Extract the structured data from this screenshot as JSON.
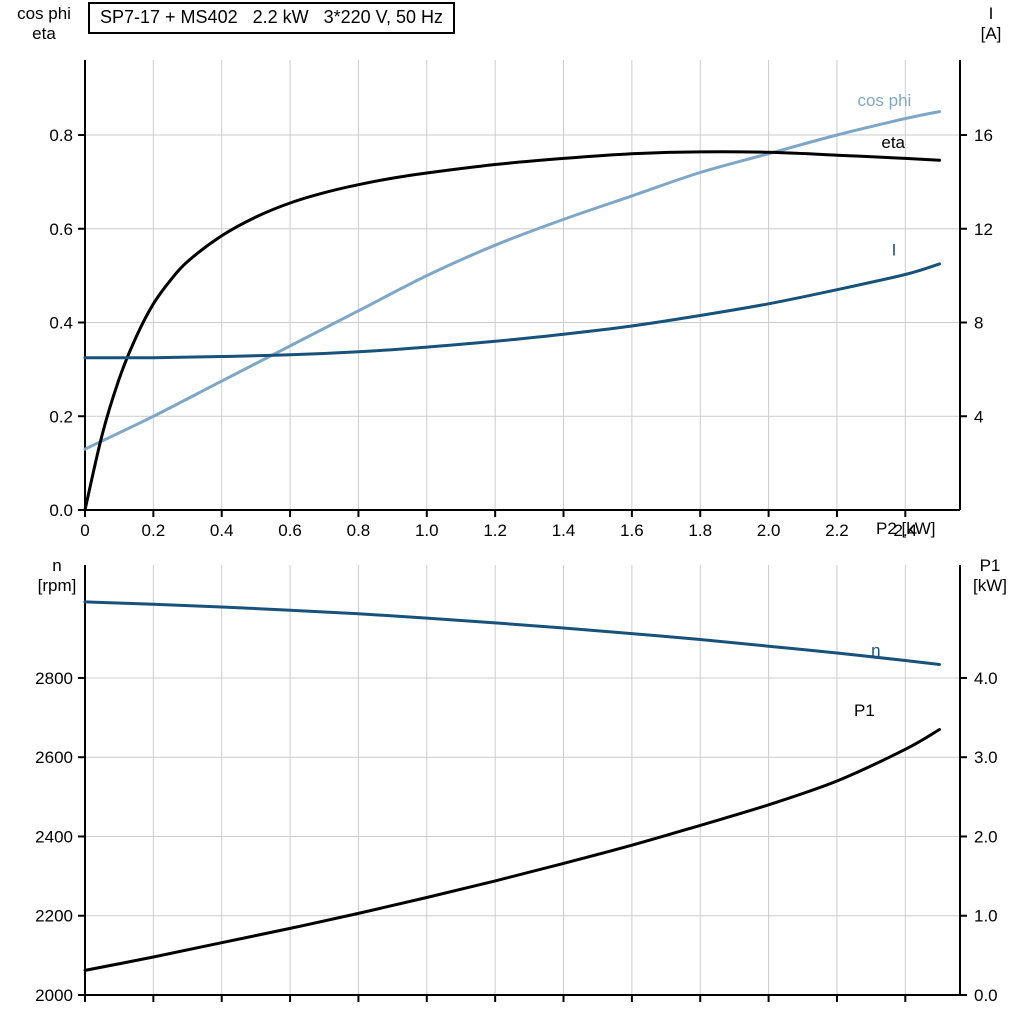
{
  "title_box": "SP7-17 + MS402   2.2 kW   3*220 V, 50 Hz",
  "labels": {
    "top_left_line1": "cos phi",
    "top_left_line2": "eta",
    "top_right_line1": "I",
    "top_right_line2": "[A]",
    "x_axis_label": "P2 [kW]",
    "bottom_left_line1": "n",
    "bottom_left_line2": "[rpm]",
    "bottom_right_line1": "P1",
    "bottom_right_line2": "[kW]"
  },
  "colors": {
    "curve_light_blue": "#7ea7c7",
    "curve_dark_blue": "#17527b",
    "curve_black": "#000000",
    "grid": "#cccccc",
    "axis": "#000000",
    "text": "#000000"
  },
  "chart_data": [
    {
      "id": "top",
      "type": "line",
      "title": "SP7-17 + MS402   2.2 kW   3*220 V, 50 Hz",
      "x_axis": {
        "label": "P2 [kW]",
        "min": 0,
        "max": 2.56,
        "show_tick_labels": true,
        "ticks": [
          0,
          0.2,
          0.4,
          0.6,
          0.8,
          1.0,
          1.2,
          1.4,
          1.6,
          1.8,
          2.0,
          2.2,
          2.4
        ],
        "tick_labels": [
          "0",
          "0.2",
          "0.4",
          "0.6",
          "0.8",
          "1.0",
          "1.2",
          "1.4",
          "1.6",
          "1.8",
          "2.0",
          "2.2",
          "2.4"
        ]
      },
      "y_left": {
        "label": "cos phi / eta",
        "min": 0,
        "max": 0.96,
        "ticks": [
          0,
          0.2,
          0.4,
          0.6,
          0.8
        ],
        "tick_labels": [
          "0.0",
          "0.2",
          "0.4",
          "0.6",
          "0.8"
        ]
      },
      "y_right": {
        "label": "I [A]",
        "min": 0,
        "max": 19.2,
        "ticks": [
          4,
          8,
          12,
          16
        ],
        "tick_labels": [
          "4",
          "8",
          "12",
          "16"
        ]
      },
      "series": [
        {
          "name": "cos phi",
          "axis": "left",
          "color_key": "curve_light_blue",
          "x": [
            0,
            0.2,
            0.4,
            0.6,
            0.8,
            1.0,
            1.2,
            1.4,
            1.6,
            1.8,
            2.0,
            2.2,
            2.4,
            2.5
          ],
          "y": [
            0.13,
            0.2,
            0.275,
            0.35,
            0.425,
            0.5,
            0.565,
            0.62,
            0.67,
            0.72,
            0.76,
            0.8,
            0.835,
            0.85
          ],
          "label": {
            "text": "cos phi",
            "x": 2.26,
            "y": 0.862
          }
        },
        {
          "name": "eta",
          "axis": "left",
          "color_key": "curve_black",
          "x": [
            0,
            0.05,
            0.1,
            0.15,
            0.2,
            0.25,
            0.3,
            0.4,
            0.5,
            0.6,
            0.7,
            0.8,
            0.9,
            1.0,
            1.2,
            1.4,
            1.6,
            1.8,
            2.0,
            2.2,
            2.4,
            2.5
          ],
          "y": [
            0,
            0.16,
            0.28,
            0.37,
            0.44,
            0.49,
            0.53,
            0.585,
            0.625,
            0.655,
            0.677,
            0.694,
            0.708,
            0.719,
            0.737,
            0.75,
            0.76,
            0.764,
            0.763,
            0.757,
            0.75,
            0.746
          ],
          "label": {
            "text": "eta",
            "x": 2.33,
            "y": 0.772
          }
        },
        {
          "name": "I",
          "axis": "right",
          "color_key": "curve_dark_blue",
          "x": [
            0,
            0.2,
            0.4,
            0.6,
            0.8,
            1.0,
            1.2,
            1.4,
            1.6,
            1.8,
            2.0,
            2.2,
            2.4,
            2.5
          ],
          "y": [
            6.5,
            6.5,
            6.55,
            6.62,
            6.75,
            6.95,
            7.2,
            7.5,
            7.85,
            8.3,
            8.8,
            9.4,
            10.05,
            10.5
          ],
          "label": {
            "text": "I",
            "x": 2.36,
            "y": 10.85
          }
        }
      ]
    },
    {
      "id": "bottom",
      "type": "line",
      "title": "",
      "x_axis": {
        "label": "",
        "min": 0,
        "max": 2.56,
        "show_tick_labels": false,
        "ticks": [
          0,
          0.2,
          0.4,
          0.6,
          0.8,
          1.0,
          1.2,
          1.4,
          1.6,
          1.8,
          2.0,
          2.2,
          2.4
        ],
        "tick_labels": []
      },
      "y_left": {
        "label": "n [rpm]",
        "min": 2000,
        "max": 3085,
        "ticks": [
          2000,
          2200,
          2400,
          2600,
          2800
        ],
        "tick_labels": [
          "2000",
          "2200",
          "2400",
          "2600",
          "2800"
        ]
      },
      "y_right": {
        "label": "P1 [kW]",
        "min": 0,
        "max": 5.425,
        "ticks": [
          0,
          1,
          2,
          3,
          4
        ],
        "tick_labels": [
          "0.0",
          "1.0",
          "2.0",
          "3.0",
          "4.0"
        ]
      },
      "series": [
        {
          "name": "n",
          "axis": "left",
          "color_key": "curve_dark_blue",
          "x": [
            0,
            0.2,
            0.4,
            0.6,
            0.8,
            1.0,
            1.2,
            1.4,
            1.6,
            1.8,
            2.0,
            2.2,
            2.4,
            2.5
          ],
          "y": [
            2992,
            2986,
            2979,
            2971,
            2962,
            2951,
            2939,
            2926,
            2912,
            2897,
            2880,
            2863,
            2844,
            2834
          ],
          "label": {
            "text": "n",
            "x": 2.3,
            "y": 2856
          }
        },
        {
          "name": "P1",
          "axis": "right",
          "color_key": "curve_black",
          "x": [
            0,
            0.2,
            0.4,
            0.6,
            0.8,
            1.0,
            1.2,
            1.4,
            1.6,
            1.8,
            2.0,
            2.2,
            2.4,
            2.5
          ],
          "y": [
            0.31,
            0.48,
            0.66,
            0.84,
            1.03,
            1.23,
            1.44,
            1.66,
            1.89,
            2.14,
            2.4,
            2.7,
            3.1,
            3.35
          ],
          "label": {
            "text": "P1",
            "x": 2.25,
            "y": 3.52
          }
        }
      ]
    }
  ]
}
